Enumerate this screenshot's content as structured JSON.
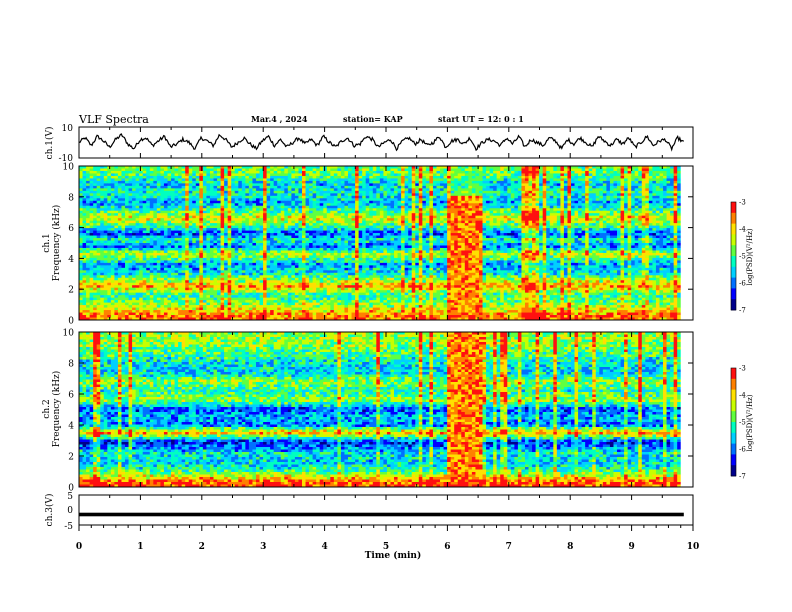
{
  "header": {
    "title": "VLF Spectra",
    "date": "Mar.4 , 2024",
    "station": "station= KAP",
    "start": "start UT =   12: 0  : 1"
  },
  "chart_data": [
    {
      "type": "line",
      "name": "ch1-waveform",
      "ylabel": "ch.1(V)",
      "xlim": [
        0,
        10
      ],
      "ylim": [
        -10,
        10
      ],
      "yticks": [
        "10",
        "-10"
      ],
      "description_values": "noisy waveform oscillating roughly between -5 and +5 V across 0-10 min",
      "samples": [
        0,
        3,
        -2,
        4,
        1,
        -3,
        2,
        5,
        -1,
        -4,
        2,
        3,
        -2,
        1,
        4,
        -3,
        -1,
        2,
        0,
        -4,
        3,
        1,
        -2,
        5,
        2,
        -3,
        0,
        3,
        -1,
        -4,
        1,
        4,
        -2,
        2,
        -3,
        0,
        3,
        -1,
        2,
        -2,
        4,
        0,
        -3,
        1,
        3,
        -2,
        -1,
        4,
        2,
        -3,
        0,
        2,
        -4,
        1,
        3,
        -1,
        2,
        -2,
        0,
        4,
        -3,
        1,
        2,
        -1,
        3,
        -4,
        0,
        2,
        1,
        -2,
        3,
        -1,
        4,
        -3,
        2,
        0,
        -2,
        3,
        1,
        -4,
        2,
        -1,
        3,
        0,
        -3,
        4,
        1,
        -2,
        2,
        -1,
        3,
        -3,
        0,
        4,
        -2,
        1,
        2,
        -4,
        3,
        0
      ]
    },
    {
      "type": "heatmap",
      "name": "ch1-spectrogram",
      "ylabel_lines": [
        "ch.1",
        "Frequency (kHz)"
      ],
      "xlim": [
        0,
        9.8
      ],
      "ylim": [
        0,
        10
      ],
      "yticks": [
        "0",
        "2",
        "4",
        "6",
        "8",
        "10"
      ],
      "colorbar": {
        "label": "log(PSD)(V²/Hz)",
        "range": [
          -7,
          -3
        ],
        "ticks": [
          "-3",
          "-4",
          "-5",
          "-6",
          "-7"
        ]
      },
      "band_profile": [
        {
          "f": 0.3,
          "level": -3.6
        },
        {
          "f": 1.0,
          "level": -4.6
        },
        {
          "f": 1.6,
          "level": -5.2
        },
        {
          "f": 2.2,
          "level": -3.8
        },
        {
          "f": 3.0,
          "level": -5.4
        },
        {
          "f": 3.6,
          "level": -5.8
        },
        {
          "f": 4.3,
          "level": -4.4
        },
        {
          "f": 4.8,
          "level": -6.0
        },
        {
          "f": 5.2,
          "level": -5.2
        },
        {
          "f": 5.6,
          "level": -6.2
        },
        {
          "f": 6.1,
          "level": -5.0
        },
        {
          "f": 6.6,
          "level": -4.2
        },
        {
          "f": 7.1,
          "level": -5.0
        },
        {
          "f": 7.6,
          "level": -5.8
        },
        {
          "f": 8.2,
          "level": -5.2
        },
        {
          "f": 8.8,
          "level": -5.6
        },
        {
          "f": 9.5,
          "level": -4.8
        }
      ],
      "burst": {
        "t_start": 6.0,
        "t_end": 6.55,
        "level": -3.6
      }
    },
    {
      "type": "heatmap",
      "name": "ch2-spectrogram",
      "ylabel_lines": [
        "ch.2",
        "Frequency (kHz)"
      ],
      "xlim": [
        0,
        9.8
      ],
      "ylim": [
        0,
        10
      ],
      "yticks": [
        "0",
        "2",
        "4",
        "6",
        "8",
        "10"
      ],
      "colorbar": {
        "label": "log(PSD)(V²/Hz)",
        "range": [
          -7,
          -3
        ],
        "ticks": [
          "-3",
          "-4",
          "-5",
          "-6",
          "-7"
        ]
      },
      "band_profile": [
        {
          "f": 0.3,
          "level": -3.4
        },
        {
          "f": 1.0,
          "level": -5.0
        },
        {
          "f": 1.6,
          "level": -5.6
        },
        {
          "f": 2.2,
          "level": -5.4
        },
        {
          "f": 2.9,
          "level": -6.4
        },
        {
          "f": 3.5,
          "level": -3.8
        },
        {
          "f": 4.0,
          "level": -6.0
        },
        {
          "f": 4.5,
          "level": -5.6
        },
        {
          "f": 5.0,
          "level": -6.2
        },
        {
          "f": 5.6,
          "level": -4.6
        },
        {
          "f": 6.2,
          "level": -5.2
        },
        {
          "f": 6.8,
          "level": -4.6
        },
        {
          "f": 7.4,
          "level": -5.6
        },
        {
          "f": 8.0,
          "level": -5.4
        },
        {
          "f": 8.6,
          "level": -5.0
        },
        {
          "f": 9.3,
          "level": -4.6
        }
      ],
      "burst": {
        "t_start": 6.0,
        "t_end": 6.55,
        "level": -3.6
      }
    },
    {
      "type": "line",
      "name": "ch3-waveform",
      "ylabel": "ch.3(V)",
      "xlim": [
        0,
        10
      ],
      "ylim": [
        -5,
        5
      ],
      "yticks": [
        "5",
        "0",
        "-5"
      ],
      "level": -1.5,
      "thickness_v": 1.2
    }
  ],
  "x_axis": {
    "label": "Time  (min)",
    "ticks": [
      "0",
      "1",
      "2",
      "3",
      "4",
      "5",
      "6",
      "7",
      "8",
      "9",
      "10"
    ]
  },
  "colors": {
    "scale": [
      "#00008b",
      "#0000ff",
      "#0080ff",
      "#00ffff",
      "#00ff80",
      "#80ff00",
      "#ffff00",
      "#ff8000",
      "#ff0000",
      "#ffffff"
    ]
  }
}
